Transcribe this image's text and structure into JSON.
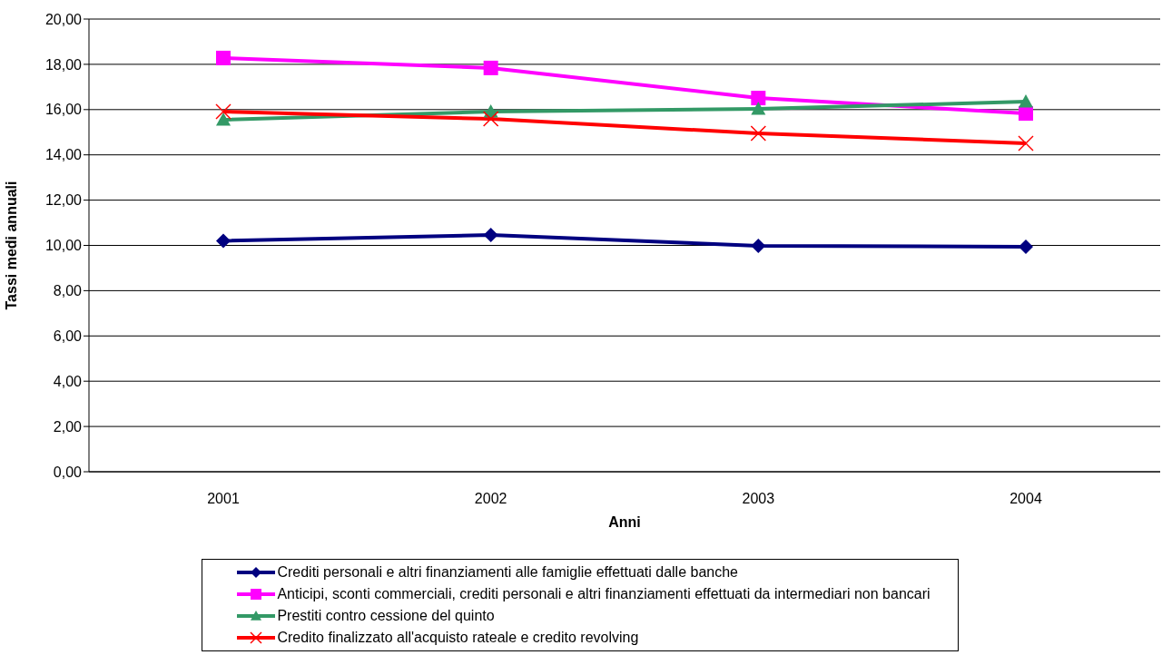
{
  "chart_data": {
    "type": "line",
    "xlabel": "Anni",
    "ylabel": "Tassi medi annuali",
    "categories": [
      "2001",
      "2002",
      "2003",
      "2004"
    ],
    "series": [
      {
        "name": "Crediti personali e altri finanziamenti alle famiglie effettuati dalle banche",
        "color": "#000080",
        "marker": "diamond",
        "values": [
          10.2,
          10.46,
          9.98,
          9.94
        ]
      },
      {
        "name": "Anticipi, sconti commerciali, crediti personali e altri finanziamenti effettuati da intermediari non bancari",
        "color": "#ff00ff",
        "marker": "square",
        "values": [
          18.28,
          17.84,
          16.51,
          15.83
        ]
      },
      {
        "name": "Prestiti contro cessione del quinto",
        "color": "#339966",
        "marker": "triangle",
        "values": [
          15.55,
          15.91,
          16.03,
          16.35
        ]
      },
      {
        "name": "Credito finalizzato all'acquisto rateale e credito revolving",
        "color": "#ff0000",
        "marker": "cross",
        "values": [
          15.91,
          15.59,
          14.95,
          14.51
        ]
      }
    ],
    "ylim": [
      0,
      20
    ],
    "yticks": [
      {
        "value": 0,
        "label": "0,00"
      },
      {
        "value": 2,
        "label": "2,00"
      },
      {
        "value": 4,
        "label": "4,00"
      },
      {
        "value": 6,
        "label": "6,00"
      },
      {
        "value": 8,
        "label": "8,00"
      },
      {
        "value": 10,
        "label": "10,00"
      },
      {
        "value": 12,
        "label": "12,00"
      },
      {
        "value": 14,
        "label": "14,00"
      },
      {
        "value": 16,
        "label": "16,00"
      },
      {
        "value": 18,
        "label": "18,00"
      },
      {
        "value": 20,
        "label": "20,00"
      }
    ],
    "grid": "y",
    "legend": "bottom",
    "line_style": "solid"
  }
}
